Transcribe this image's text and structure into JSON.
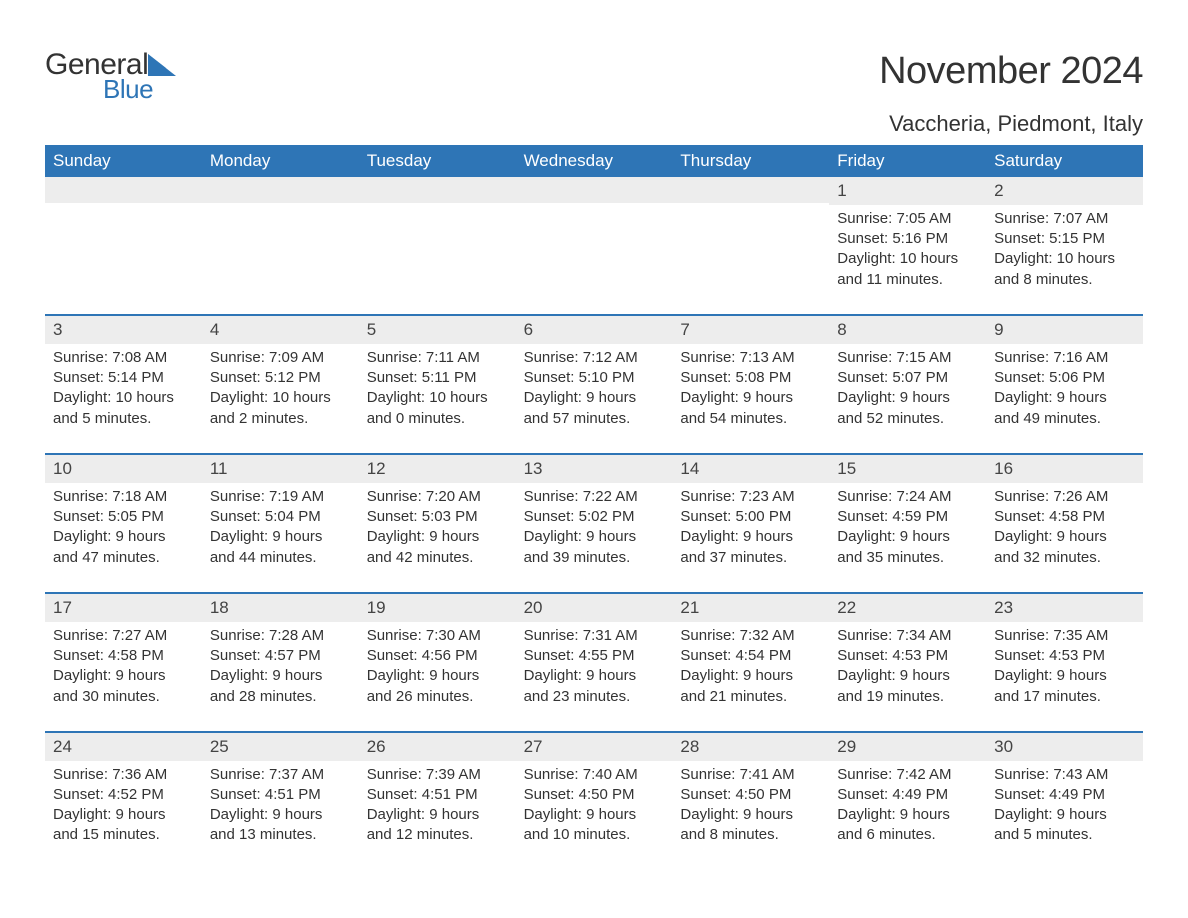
{
  "logo": {
    "general": "General",
    "blue": "Blue",
    "triangle_color": "#2e75b6"
  },
  "title": "November 2024",
  "location": "Vaccheria, Piedmont, Italy",
  "colors": {
    "header_bg": "#2e75b6",
    "header_text": "#ffffff",
    "day_bar_bg": "#ededed",
    "text": "#333333",
    "row_border": "#2e75b6",
    "background": "#ffffff"
  },
  "typography": {
    "title_fontsize": 38,
    "location_fontsize": 22,
    "header_fontsize": 17,
    "body_fontsize": 15,
    "daynum_fontsize": 17
  },
  "layout": {
    "columns": 7,
    "rows": 5
  },
  "day_headers": [
    "Sunday",
    "Monday",
    "Tuesday",
    "Wednesday",
    "Thursday",
    "Friday",
    "Saturday"
  ],
  "weeks": [
    [
      {
        "empty": true
      },
      {
        "empty": true
      },
      {
        "empty": true
      },
      {
        "empty": true
      },
      {
        "empty": true
      },
      {
        "day": "1",
        "sunrise": "Sunrise: 7:05 AM",
        "sunset": "Sunset: 5:16 PM",
        "daylight": "Daylight: 10 hours and 11 minutes."
      },
      {
        "day": "2",
        "sunrise": "Sunrise: 7:07 AM",
        "sunset": "Sunset: 5:15 PM",
        "daylight": "Daylight: 10 hours and 8 minutes."
      }
    ],
    [
      {
        "day": "3",
        "sunrise": "Sunrise: 7:08 AM",
        "sunset": "Sunset: 5:14 PM",
        "daylight": "Daylight: 10 hours and 5 minutes."
      },
      {
        "day": "4",
        "sunrise": "Sunrise: 7:09 AM",
        "sunset": "Sunset: 5:12 PM",
        "daylight": "Daylight: 10 hours and 2 minutes."
      },
      {
        "day": "5",
        "sunrise": "Sunrise: 7:11 AM",
        "sunset": "Sunset: 5:11 PM",
        "daylight": "Daylight: 10 hours and 0 minutes."
      },
      {
        "day": "6",
        "sunrise": "Sunrise: 7:12 AM",
        "sunset": "Sunset: 5:10 PM",
        "daylight": "Daylight: 9 hours and 57 minutes."
      },
      {
        "day": "7",
        "sunrise": "Sunrise: 7:13 AM",
        "sunset": "Sunset: 5:08 PM",
        "daylight": "Daylight: 9 hours and 54 minutes."
      },
      {
        "day": "8",
        "sunrise": "Sunrise: 7:15 AM",
        "sunset": "Sunset: 5:07 PM",
        "daylight": "Daylight: 9 hours and 52 minutes."
      },
      {
        "day": "9",
        "sunrise": "Sunrise: 7:16 AM",
        "sunset": "Sunset: 5:06 PM",
        "daylight": "Daylight: 9 hours and 49 minutes."
      }
    ],
    [
      {
        "day": "10",
        "sunrise": "Sunrise: 7:18 AM",
        "sunset": "Sunset: 5:05 PM",
        "daylight": "Daylight: 9 hours and 47 minutes."
      },
      {
        "day": "11",
        "sunrise": "Sunrise: 7:19 AM",
        "sunset": "Sunset: 5:04 PM",
        "daylight": "Daylight: 9 hours and 44 minutes."
      },
      {
        "day": "12",
        "sunrise": "Sunrise: 7:20 AM",
        "sunset": "Sunset: 5:03 PM",
        "daylight": "Daylight: 9 hours and 42 minutes."
      },
      {
        "day": "13",
        "sunrise": "Sunrise: 7:22 AM",
        "sunset": "Sunset: 5:02 PM",
        "daylight": "Daylight: 9 hours and 39 minutes."
      },
      {
        "day": "14",
        "sunrise": "Sunrise: 7:23 AM",
        "sunset": "Sunset: 5:00 PM",
        "daylight": "Daylight: 9 hours and 37 minutes."
      },
      {
        "day": "15",
        "sunrise": "Sunrise: 7:24 AM",
        "sunset": "Sunset: 4:59 PM",
        "daylight": "Daylight: 9 hours and 35 minutes."
      },
      {
        "day": "16",
        "sunrise": "Sunrise: 7:26 AM",
        "sunset": "Sunset: 4:58 PM",
        "daylight": "Daylight: 9 hours and 32 minutes."
      }
    ],
    [
      {
        "day": "17",
        "sunrise": "Sunrise: 7:27 AM",
        "sunset": "Sunset: 4:58 PM",
        "daylight": "Daylight: 9 hours and 30 minutes."
      },
      {
        "day": "18",
        "sunrise": "Sunrise: 7:28 AM",
        "sunset": "Sunset: 4:57 PM",
        "daylight": "Daylight: 9 hours and 28 minutes."
      },
      {
        "day": "19",
        "sunrise": "Sunrise: 7:30 AM",
        "sunset": "Sunset: 4:56 PM",
        "daylight": "Daylight: 9 hours and 26 minutes."
      },
      {
        "day": "20",
        "sunrise": "Sunrise: 7:31 AM",
        "sunset": "Sunset: 4:55 PM",
        "daylight": "Daylight: 9 hours and 23 minutes."
      },
      {
        "day": "21",
        "sunrise": "Sunrise: 7:32 AM",
        "sunset": "Sunset: 4:54 PM",
        "daylight": "Daylight: 9 hours and 21 minutes."
      },
      {
        "day": "22",
        "sunrise": "Sunrise: 7:34 AM",
        "sunset": "Sunset: 4:53 PM",
        "daylight": "Daylight: 9 hours and 19 minutes."
      },
      {
        "day": "23",
        "sunrise": "Sunrise: 7:35 AM",
        "sunset": "Sunset: 4:53 PM",
        "daylight": "Daylight: 9 hours and 17 minutes."
      }
    ],
    [
      {
        "day": "24",
        "sunrise": "Sunrise: 7:36 AM",
        "sunset": "Sunset: 4:52 PM",
        "daylight": "Daylight: 9 hours and 15 minutes."
      },
      {
        "day": "25",
        "sunrise": "Sunrise: 7:37 AM",
        "sunset": "Sunset: 4:51 PM",
        "daylight": "Daylight: 9 hours and 13 minutes."
      },
      {
        "day": "26",
        "sunrise": "Sunrise: 7:39 AM",
        "sunset": "Sunset: 4:51 PM",
        "daylight": "Daylight: 9 hours and 12 minutes."
      },
      {
        "day": "27",
        "sunrise": "Sunrise: 7:40 AM",
        "sunset": "Sunset: 4:50 PM",
        "daylight": "Daylight: 9 hours and 10 minutes."
      },
      {
        "day": "28",
        "sunrise": "Sunrise: 7:41 AM",
        "sunset": "Sunset: 4:50 PM",
        "daylight": "Daylight: 9 hours and 8 minutes."
      },
      {
        "day": "29",
        "sunrise": "Sunrise: 7:42 AM",
        "sunset": "Sunset: 4:49 PM",
        "daylight": "Daylight: 9 hours and 6 minutes."
      },
      {
        "day": "30",
        "sunrise": "Sunrise: 7:43 AM",
        "sunset": "Sunset: 4:49 PM",
        "daylight": "Daylight: 9 hours and 5 minutes."
      }
    ]
  ]
}
